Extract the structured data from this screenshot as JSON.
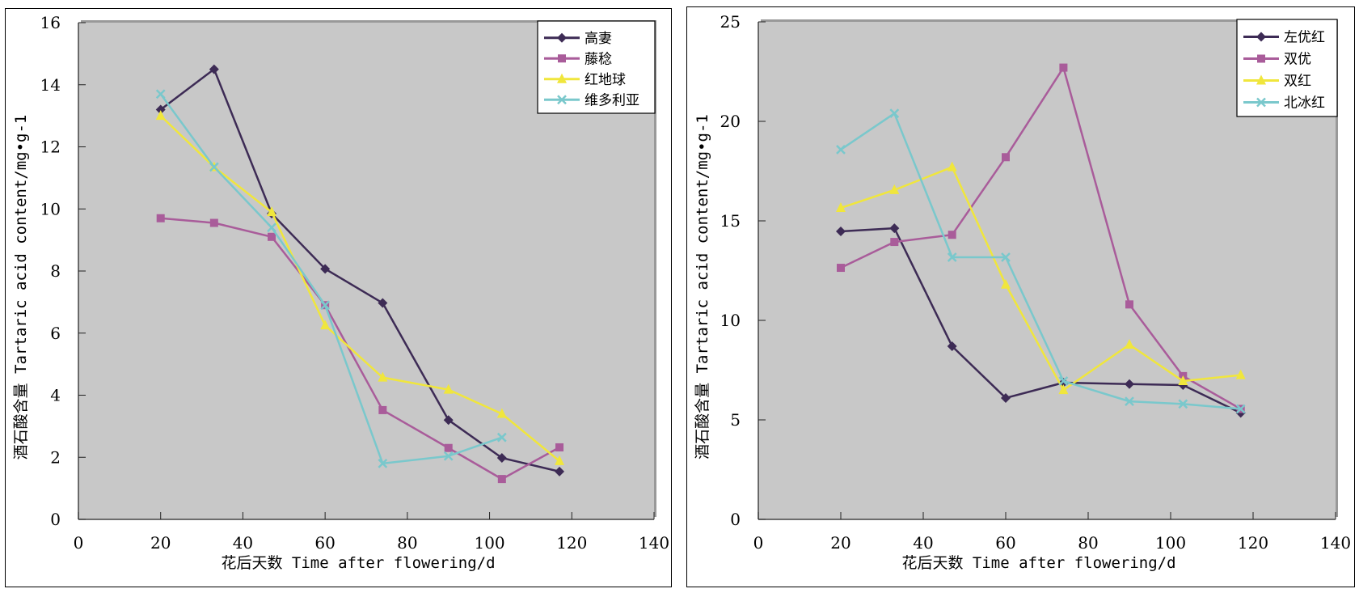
{
  "colors": {
    "plot_bg": "#c8c8c8",
    "series": [
      "#3d2b55",
      "#a95c9a",
      "#f0e63c",
      "#7ac8cc"
    ]
  },
  "chart_data": [
    {
      "type": "line",
      "title": "",
      "xlabel": "花后天数  Time after flowering/d",
      "ylabel": "酒石酸含量  Tartaric acid content/mg•g-1",
      "xlim": [
        0,
        140
      ],
      "ylim": [
        0,
        16
      ],
      "xticks": [
        0,
        20,
        40,
        60,
        80,
        100,
        120,
        140
      ],
      "yticks": [
        0,
        2,
        4,
        6,
        8,
        10,
        12,
        14,
        16
      ],
      "grid": false,
      "legend_position": "top-right",
      "x": [
        20,
        33,
        47,
        60,
        74,
        90,
        103,
        117
      ],
      "series": [
        {
          "name": "高妻",
          "marker": "diamond",
          "values": [
            13.2,
            14.5,
            9.85,
            8.07,
            6.97,
            3.2,
            1.98,
            1.54
          ]
        },
        {
          "name": "藤稔",
          "marker": "square",
          "values": [
            9.7,
            9.55,
            9.1,
            6.9,
            3.52,
            2.3,
            1.3,
            2.32
          ]
        },
        {
          "name": "红地球",
          "marker": "triangle",
          "values": [
            13.0,
            11.35,
            9.9,
            6.25,
            4.57,
            4.18,
            3.4,
            1.88
          ]
        },
        {
          "name": "维多利亚",
          "marker": "x",
          "values": [
            13.7,
            11.35,
            9.4,
            6.9,
            1.8,
            2.04,
            2.64,
            null
          ]
        }
      ]
    },
    {
      "type": "line",
      "title": "",
      "xlabel": "花后天数  Time after flowering/d",
      "ylabel": "酒石酸含量  Tartaric acid content/mg•g-1",
      "xlim": [
        0,
        140
      ],
      "ylim": [
        0,
        25
      ],
      "xticks": [
        0,
        20,
        40,
        60,
        80,
        100,
        120,
        140
      ],
      "yticks": [
        0,
        5,
        10,
        15,
        20,
        25
      ],
      "grid": false,
      "legend_position": "top-right",
      "x": [
        20,
        33,
        47,
        60,
        74,
        90,
        103,
        117
      ],
      "series": [
        {
          "name": "左优红",
          "marker": "diamond",
          "values": [
            14.47,
            14.63,
            8.7,
            6.1,
            6.87,
            6.8,
            6.75,
            5.35
          ]
        },
        {
          "name": "双优",
          "marker": "square",
          "values": [
            12.64,
            13.94,
            14.3,
            18.2,
            22.7,
            10.8,
            7.2,
            5.55
          ]
        },
        {
          "name": "双红",
          "marker": "triangle",
          "values": [
            15.65,
            16.55,
            17.7,
            11.8,
            6.5,
            8.78,
            6.95,
            7.25
          ]
        },
        {
          "name": "北冰红",
          "marker": "x",
          "values": [
            18.58,
            20.4,
            13.17,
            13.17,
            6.95,
            5.93,
            5.8,
            5.55
          ]
        }
      ]
    }
  ]
}
